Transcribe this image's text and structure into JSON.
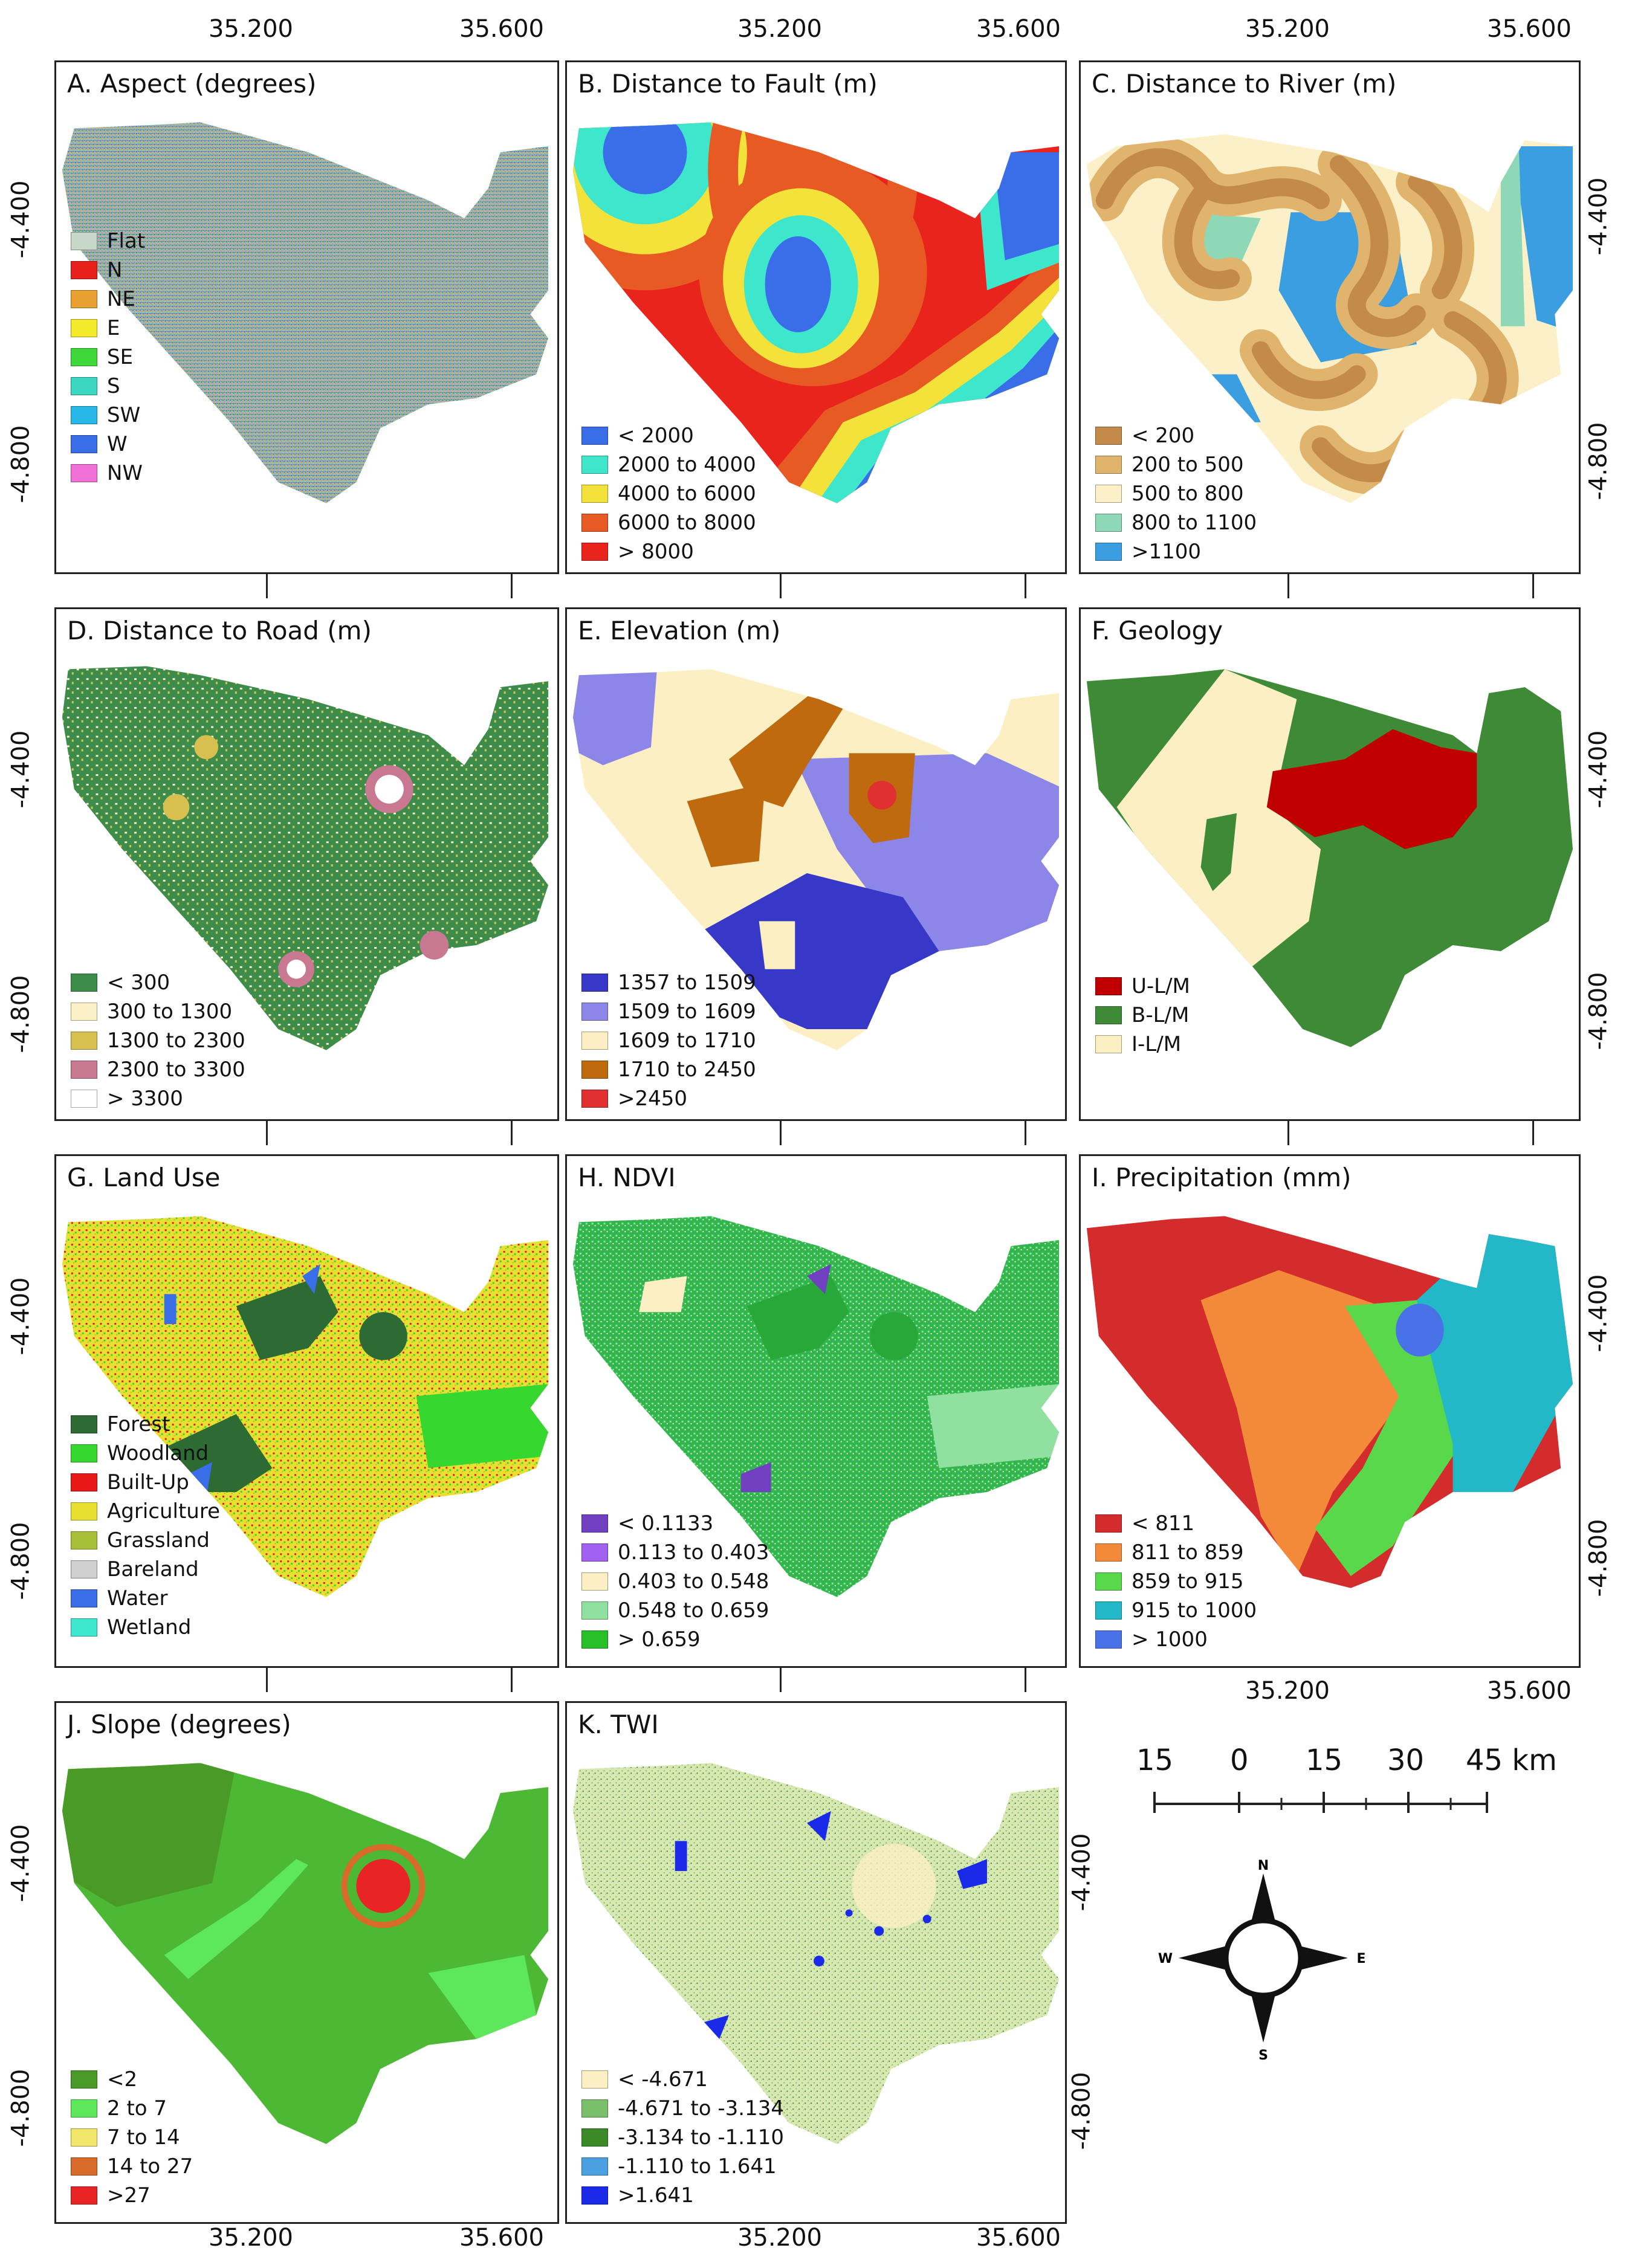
{
  "colors": {
    "aspect_base": "#6fcfb1",
    "fault_red": "#e8241c",
    "fault_orange": "#e85a24",
    "fault_yellow": "#f2e23a",
    "fault_cyan": "#3ee6cc",
    "fault_blue": "#3a6ee8",
    "river_brown": "#c48a4a",
    "river_tan": "#e0b46c",
    "river_cream": "#fbf0c8",
    "river_mint": "#8ed8b8",
    "river_blue": "#3a9ee0",
    "road_green": "#3d8c4a",
    "elev_dark": "#3838c8",
    "elev_light": "#8c86e8",
    "elev_cream": "#fcefc4",
    "elev_orange": "#c06a10",
    "elev_red": "#e03030",
    "geo_red": "#c00000",
    "geo_green": "#3f8a36",
    "geo_cream": "#fcefc4",
    "ndvi_green": "#2fb84a",
    "precip_red": "#d42c2c",
    "precip_orange": "#f28a3a",
    "precip_green": "#58d84a",
    "precip_cyan": "#22b8c8",
    "precip_blue": "#4a72e8",
    "slope_green": "#4cb834",
    "slope_red": "#e82020",
    "twi_base": "#d8e8b0",
    "twi_blue": "#1a3ae8"
  },
  "axes": {
    "top_left_lons": [
      "35.200",
      "35.600"
    ],
    "top_mid_lons": [
      "35.200",
      "35.600"
    ],
    "top_right_lons": [
      "35.200",
      "35.600"
    ],
    "bottom_left_lons": [
      "35.200",
      "35.600"
    ],
    "bottom_mid_lons": [
      "35.200",
      "35.600"
    ],
    "bottom_right_lons": [
      "35.200",
      "35.600"
    ],
    "left_lats": [
      "-4.400",
      "-4.800"
    ],
    "right_lats": [
      "-4.400",
      "-4.800"
    ]
  },
  "panels": {
    "a": {
      "title": "A. Aspect (degrees)",
      "legend": [
        {
          "label": "Flat",
          "color": "#c8d8c8"
        },
        {
          "label": "N",
          "color": "#e8201c"
        },
        {
          "label": "NE",
          "color": "#e8a030"
        },
        {
          "label": "E",
          "color": "#f2ea2a"
        },
        {
          "label": "SE",
          "color": "#3ed83a"
        },
        {
          "label": "S",
          "color": "#3ad8c0"
        },
        {
          "label": "SW",
          "color": "#28b8e8"
        },
        {
          "label": "W",
          "color": "#3a6ee8"
        },
        {
          "label": "NW",
          "color": "#f070d8"
        }
      ]
    },
    "b": {
      "title": "B. Distance to Fault (m)",
      "legend": [
        {
          "label": "< 2000",
          "color": "#3a6ee8"
        },
        {
          "label": "2000 to 4000",
          "color": "#3ee6cc"
        },
        {
          "label": "4000 to 6000",
          "color": "#f2e23a"
        },
        {
          "label": "6000 to 8000",
          "color": "#e85a24"
        },
        {
          "label": "> 8000",
          "color": "#e8241c"
        }
      ]
    },
    "c": {
      "title": "C. Distance to River (m)",
      "legend": [
        {
          "label": "< 200",
          "color": "#c48a4a"
        },
        {
          "label": "200 to 500",
          "color": "#e0b46c"
        },
        {
          "label": "500 to 800",
          "color": "#fbf0c8"
        },
        {
          "label": "800 to 1100",
          "color": "#8ed8b8"
        },
        {
          "label": ">1100",
          "color": "#3a9ee0"
        }
      ]
    },
    "d": {
      "title": "D. Distance to Road (m)",
      "legend": [
        {
          "label": "< 300",
          "color": "#3d8c4a"
        },
        {
          "label": "300 to 1300",
          "color": "#fbf0c8"
        },
        {
          "label": "1300 to 2300",
          "color": "#d8c050"
        },
        {
          "label": "2300 to 3300",
          "color": "#c87890"
        },
        {
          "label": "> 3300",
          "color": "#ffffff"
        }
      ]
    },
    "e": {
      "title": "E. Elevation (m)",
      "legend": [
        {
          "label": "1357 to 1509",
          "color": "#3838c8"
        },
        {
          "label": "1509 to 1609",
          "color": "#8c86e8"
        },
        {
          "label": "1609 to 1710",
          "color": "#fcefc4"
        },
        {
          "label": "1710 to 2450",
          "color": "#c06a10"
        },
        {
          "label": ">2450",
          "color": "#e03030"
        }
      ]
    },
    "f": {
      "title": "F. Geology",
      "legend": [
        {
          "label": "U-L/M",
          "color": "#c00000"
        },
        {
          "label": "B-L/M",
          "color": "#3f8a36"
        },
        {
          "label": "I-L/M",
          "color": "#fcefc4"
        }
      ]
    },
    "g": {
      "title": "G. Land Use",
      "legend": [
        {
          "label": "Forest",
          "color": "#2e6a34"
        },
        {
          "label": "Woodland",
          "color": "#36d830"
        },
        {
          "label": "Built-Up",
          "color": "#e81818"
        },
        {
          "label": "Agriculture",
          "color": "#e8e030"
        },
        {
          "label": "Grassland",
          "color": "#a8c038"
        },
        {
          "label": "Bareland",
          "color": "#d0d0d0"
        },
        {
          "label": "Water",
          "color": "#3a6ee8"
        },
        {
          "label": "Wetland",
          "color": "#3ee8d0"
        }
      ]
    },
    "h": {
      "title": "H. NDVI",
      "legend": [
        {
          "label": "< 0.1133",
          "color": "#7040c0"
        },
        {
          "label": "0.113 to  0.403",
          "color": "#a060f0"
        },
        {
          "label": "0.403 to 0.548",
          "color": "#fcefc4"
        },
        {
          "label": "0.548 to 0.659",
          "color": "#90e0a0"
        },
        {
          "label": "> 0.659",
          "color": "#28c028"
        }
      ]
    },
    "i": {
      "title": "I. Precipitation (mm)",
      "legend": [
        {
          "label": "< 811",
          "color": "#d42c2c"
        },
        {
          "label": "811 to 859",
          "color": "#f28a3a"
        },
        {
          "label": "859 to 915",
          "color": "#58d84a"
        },
        {
          "label": "915 to 1000",
          "color": "#22b8c8"
        },
        {
          "label": "> 1000",
          "color": "#4a72e8"
        }
      ]
    },
    "j": {
      "title": "J. Slope (degrees)",
      "legend": [
        {
          "label": "<2",
          "color": "#4a9a28"
        },
        {
          "label": "2 to 7",
          "color": "#5ce85a"
        },
        {
          "label": "7 to 14",
          "color": "#f2e66a"
        },
        {
          "label": "14 to 27",
          "color": "#d86a2a"
        },
        {
          "label": ">27",
          "color": "#e82424"
        }
      ]
    },
    "k": {
      "title": "K. TWI",
      "legend": [
        {
          "label": "< -4.671",
          "color": "#fcefc4"
        },
        {
          "label": "-4.671 to -3.134",
          "color": "#7ac06a"
        },
        {
          "label": "-3.134 to -1.110",
          "color": "#3a8a28"
        },
        {
          "label": "-1.110 to 1.641",
          "color": "#4aa0e0"
        },
        {
          "label": ">1.641",
          "color": "#1a2ae8"
        }
      ]
    }
  },
  "scalebar": {
    "labels": [
      "15",
      "0",
      "15",
      "30",
      "45 km"
    ]
  },
  "compass": {
    "n": "N",
    "s": "S",
    "e": "E",
    "w": "W"
  }
}
